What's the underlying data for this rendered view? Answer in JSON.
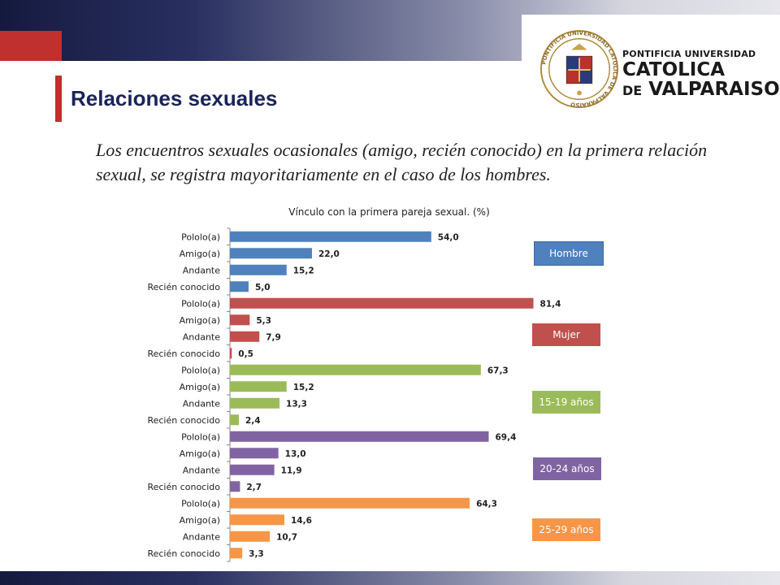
{
  "header": {
    "title": "Relaciones sexuales",
    "subtitle": "Los encuentros sexuales ocasionales (amigo, recién conocido) en la primera relación sexual, se registra mayoritariamente en el caso de los hombres."
  },
  "logo": {
    "line1": "PONTIFICIA UNIVERSIDAD",
    "line2": "CATOLICA",
    "line3_de": "DE",
    "line3_rest": " VALPARAISO",
    "seal_text": "PONTIFICIA UNIVERSIDAD CATOLICA DE VALPARAISO"
  },
  "colors": {
    "accent_red": "#c0302e",
    "navy": "#1b2457"
  },
  "chart_data": {
    "type": "bar",
    "orientation": "horizontal",
    "title": "Vínculo con la primera pareja sexual. (%)",
    "xlim": [
      0,
      90
    ],
    "categories": [
      "Pololo(a)",
      "Amigo(a)",
      "Andante",
      "Recién conocido"
    ],
    "series": [
      {
        "name": "Hombre",
        "color": "#4f81bd",
        "values": [
          54.0,
          22.0,
          15.2,
          5.0
        ],
        "labels": [
          "54,0",
          "22,0",
          "15,2",
          "5,0"
        ]
      },
      {
        "name": "Mujer",
        "color": "#c0504d",
        "values": [
          81.4,
          5.3,
          7.9,
          0.5
        ],
        "labels": [
          "81,4",
          "5,3",
          "7,9",
          "0,5"
        ]
      },
      {
        "name": "15-19 años",
        "color": "#9bbb59",
        "values": [
          67.3,
          15.2,
          13.3,
          2.4
        ],
        "labels": [
          "67,3",
          "15,2",
          "13,3",
          "2,4"
        ]
      },
      {
        "name": "20-24 años",
        "color": "#8064a2",
        "values": [
          69.4,
          13.0,
          11.9,
          2.7
        ],
        "labels": [
          "69,4",
          "13,0",
          "11,9",
          "2,7"
        ]
      },
      {
        "name": "25-29 años",
        "color": "#f79646",
        "values": [
          64.3,
          14.6,
          10.7,
          3.3
        ],
        "labels": [
          "64,3",
          "14,6",
          "10,7",
          "3,3"
        ]
      }
    ]
  }
}
